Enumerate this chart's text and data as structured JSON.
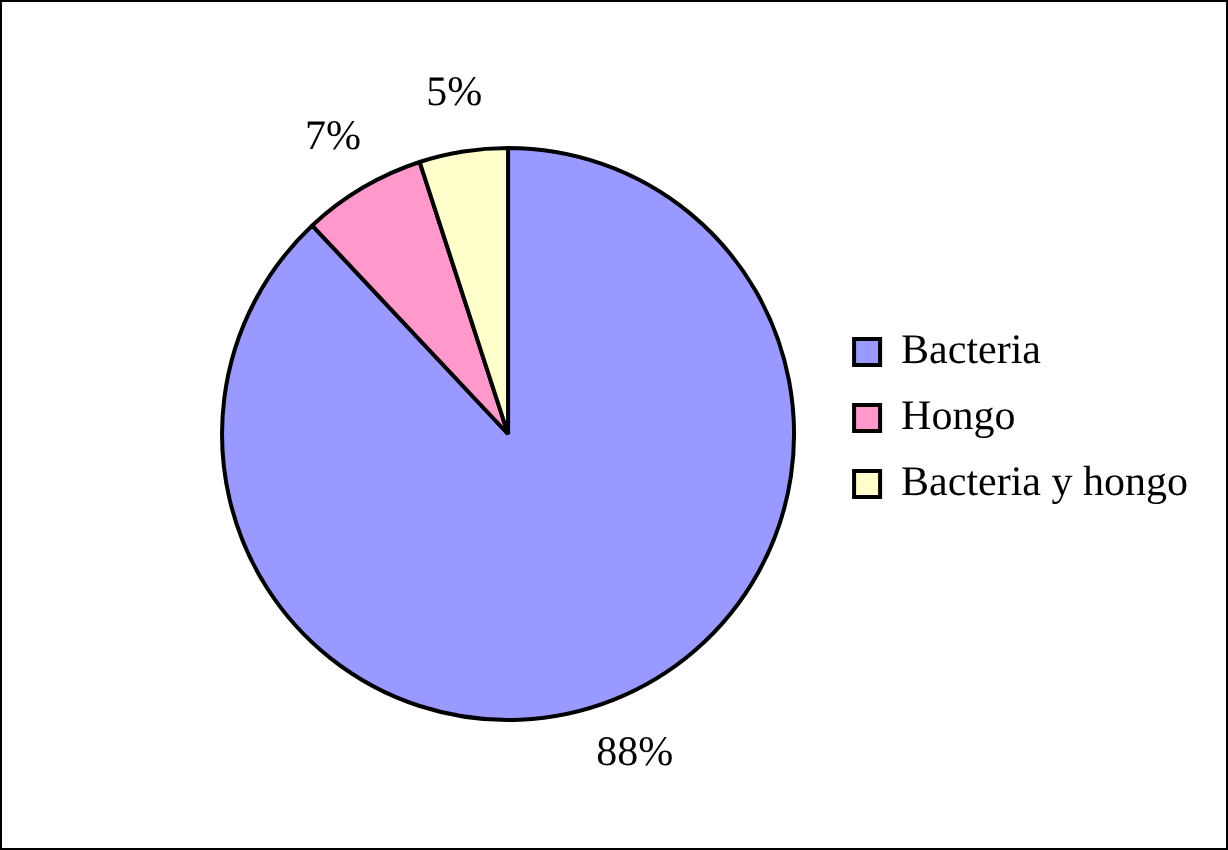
{
  "chart_data": {
    "type": "pie",
    "categories": [
      "Bacteria",
      "Hongo",
      "Bacteria y hongo"
    ],
    "values": [
      88,
      7,
      5
    ],
    "colors": [
      "#9999ff",
      "#ff99cc",
      "#ffffcc"
    ],
    "value_labels": [
      "88%",
      "7%",
      "5%"
    ],
    "legend": "right"
  }
}
